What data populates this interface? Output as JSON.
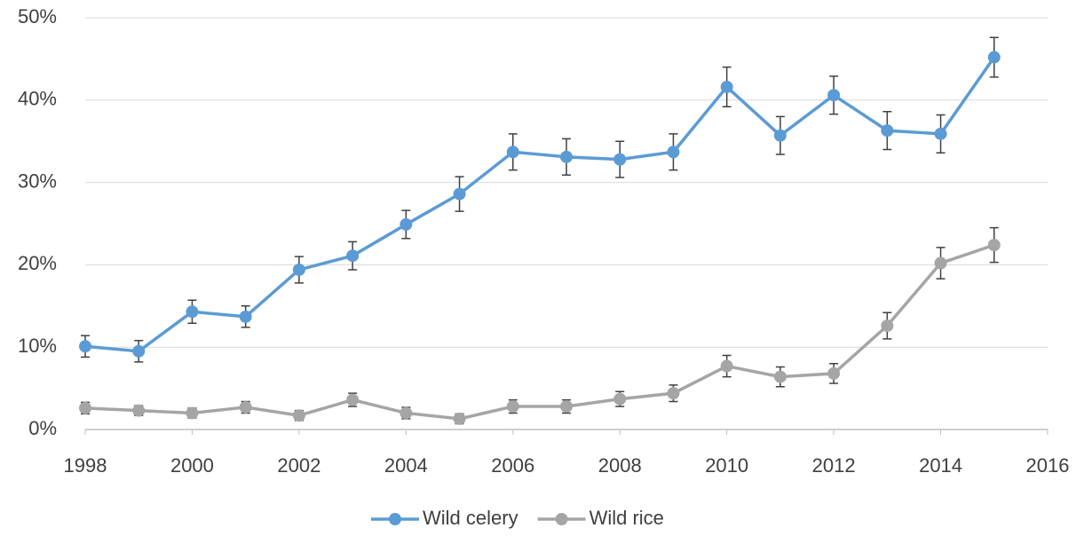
{
  "chart_data": {
    "type": "line",
    "x": [
      1998,
      1999,
      2000,
      2001,
      2002,
      2003,
      2004,
      2005,
      2006,
      2007,
      2008,
      2009,
      2010,
      2011,
      2012,
      2013,
      2014,
      2015
    ],
    "series": [
      {
        "name": "Wild celery",
        "color": "#5b9bd5",
        "values": [
          10.1,
          9.5,
          14.3,
          13.7,
          19.4,
          21.1,
          24.9,
          28.6,
          33.7,
          33.1,
          32.8,
          33.7,
          41.6,
          35.7,
          40.6,
          36.3,
          35.9,
          45.2
        ],
        "errors": [
          1.3,
          1.3,
          1.4,
          1.3,
          1.6,
          1.7,
          1.7,
          2.1,
          2.2,
          2.2,
          2.2,
          2.2,
          2.4,
          2.3,
          2.3,
          2.3,
          2.3,
          2.4
        ]
      },
      {
        "name": "Wild rice",
        "color": "#a5a5a5",
        "values": [
          2.6,
          2.3,
          2.0,
          2.7,
          1.7,
          3.6,
          2.0,
          1.3,
          2.8,
          2.8,
          3.7,
          4.4,
          7.7,
          6.4,
          6.8,
          12.6,
          20.2,
          22.4
        ],
        "errors": [
          0.7,
          0.6,
          0.6,
          0.7,
          0.6,
          0.8,
          0.7,
          0.6,
          0.8,
          0.8,
          0.9,
          1.0,
          1.3,
          1.2,
          1.2,
          1.6,
          1.9,
          2.1
        ]
      }
    ],
    "xlim": [
      1998,
      2016
    ],
    "xticks": [
      1998,
      2000,
      2002,
      2004,
      2006,
      2008,
      2010,
      2012,
      2014,
      2016
    ],
    "ylim": [
      0,
      50
    ],
    "yticks": [
      {
        "value": 0,
        "label": "0%"
      },
      {
        "value": 10,
        "label": "10%"
      },
      {
        "value": 20,
        "label": "20%"
      },
      {
        "value": 30,
        "label": "30%"
      },
      {
        "value": 40,
        "label": "40%"
      },
      {
        "value": 50,
        "label": "50%"
      }
    ],
    "grid": true,
    "legend": "bottom",
    "error_bar_color": "#404040"
  }
}
